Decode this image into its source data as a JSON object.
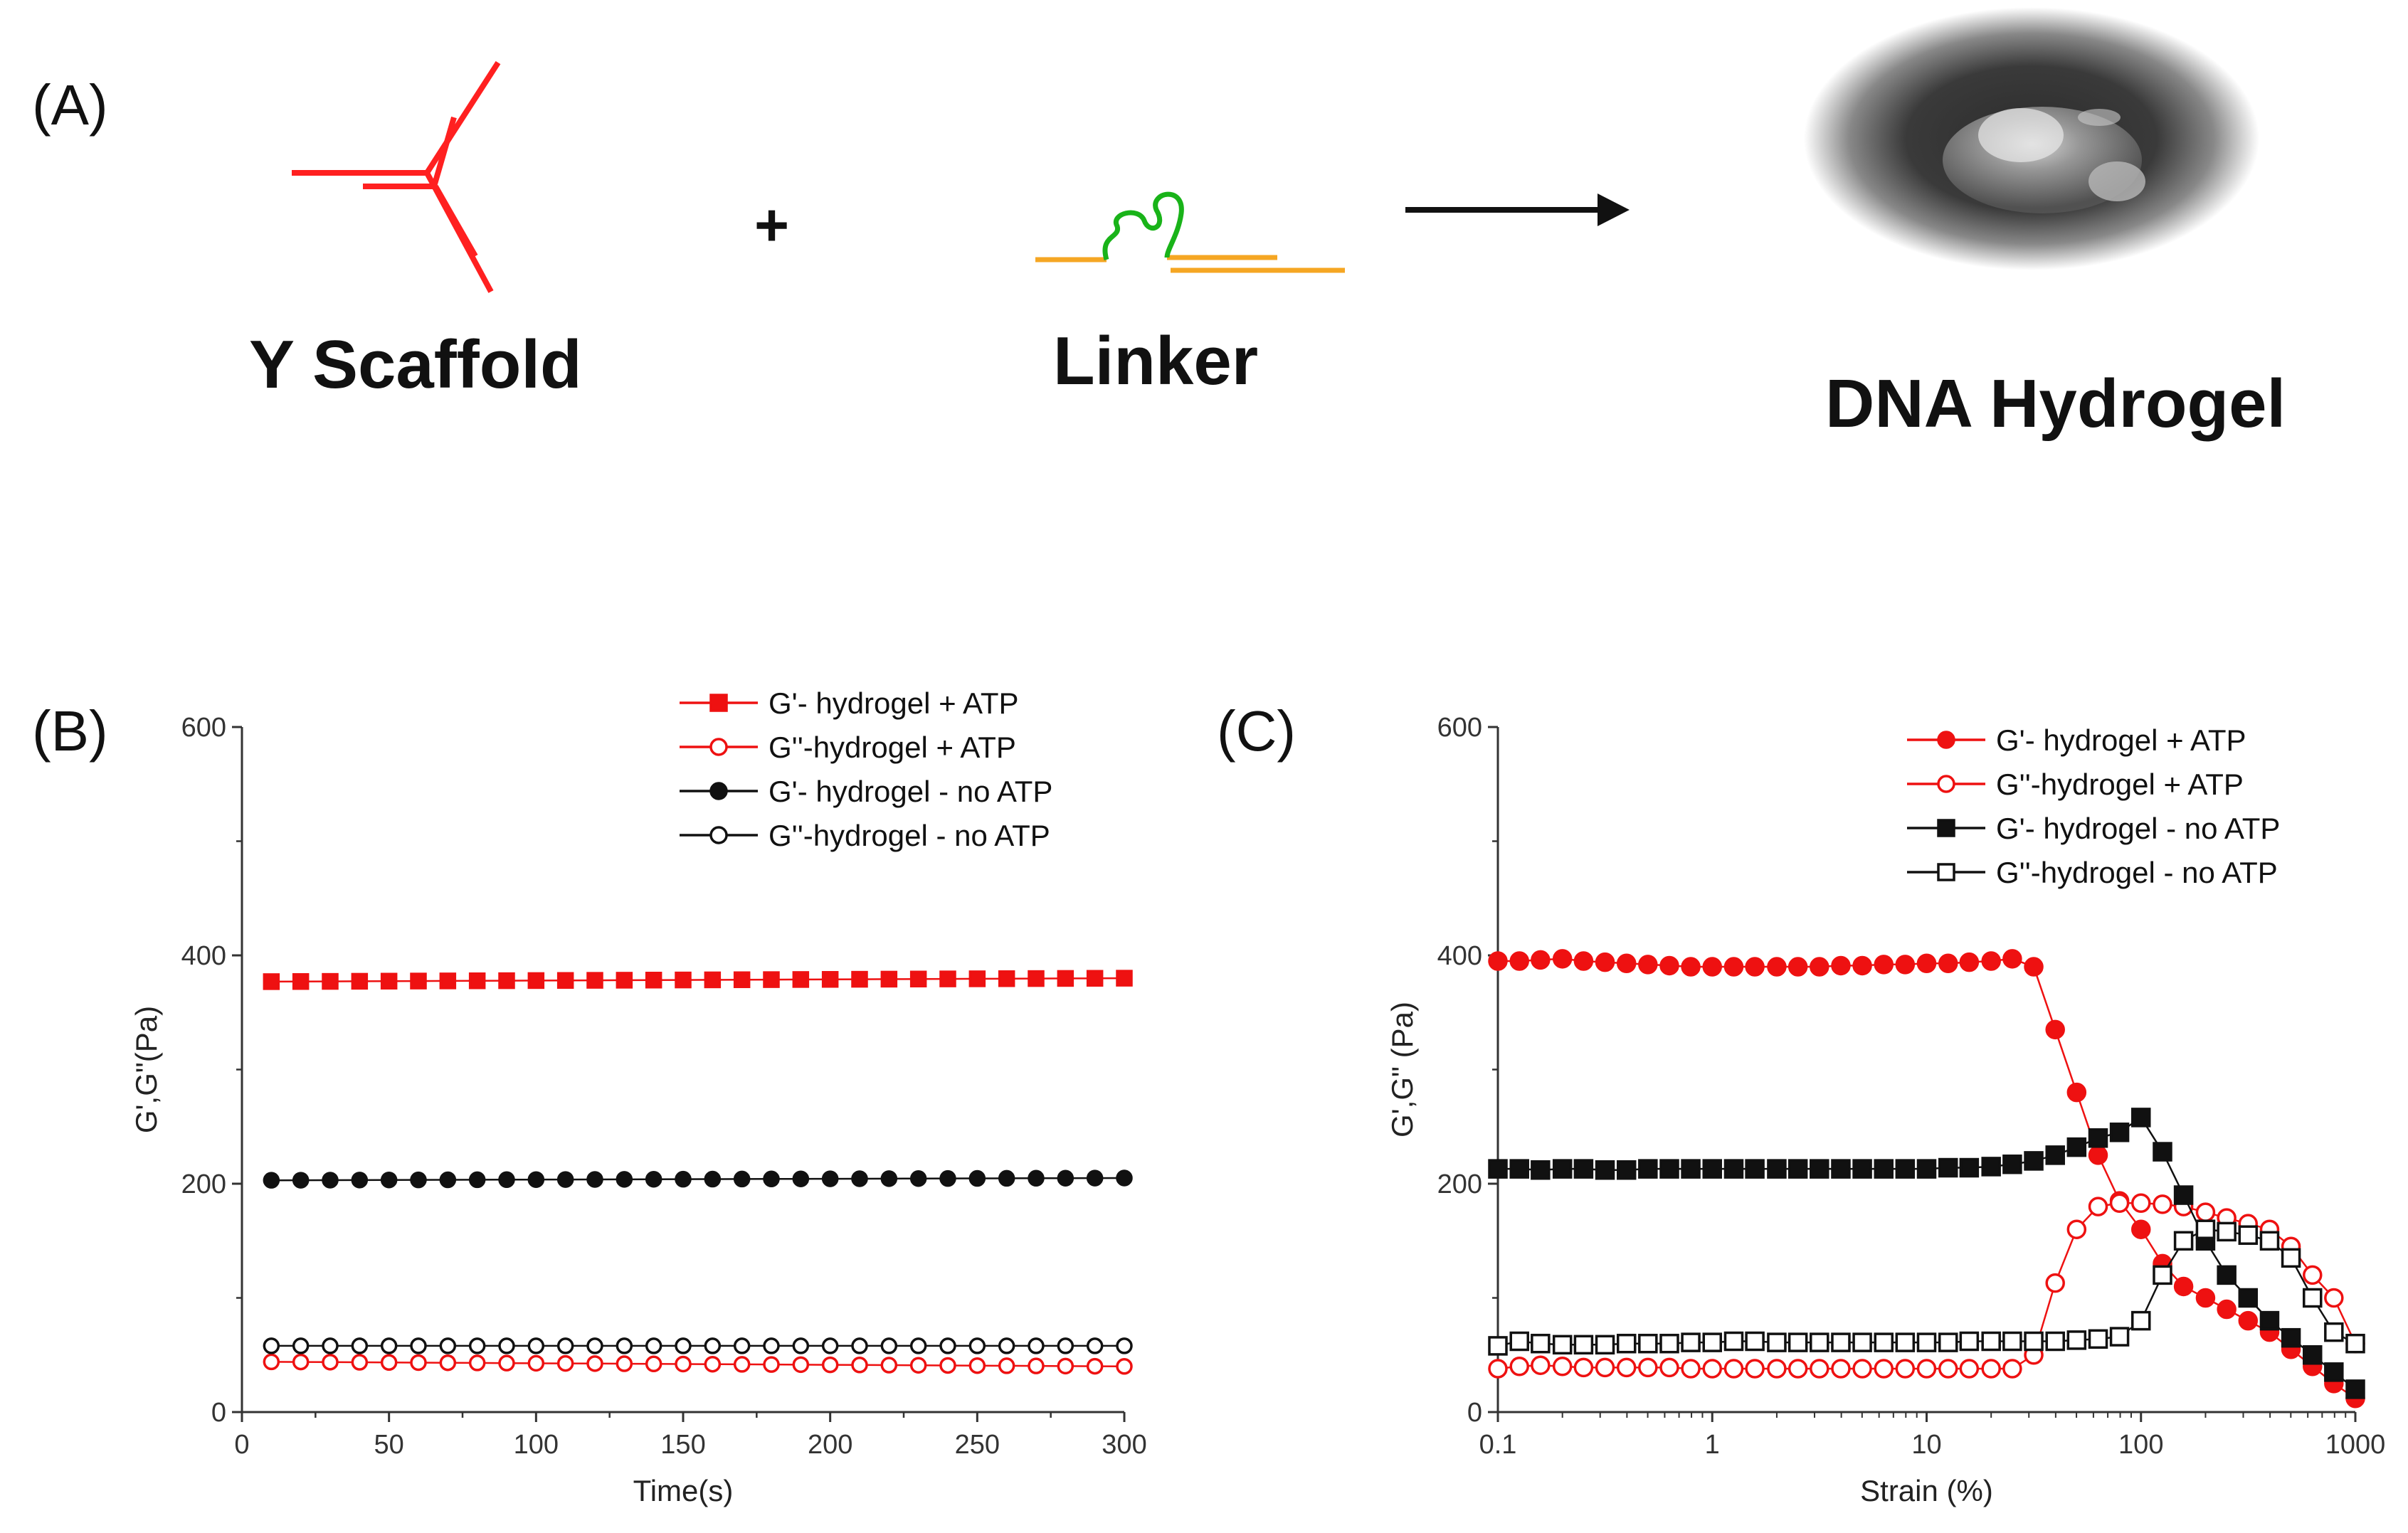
{
  "panel_a": {
    "label": "(A)",
    "scaffold_label": "Y Scaffold",
    "plus": "+",
    "linker_label": "Linker",
    "hydrogel_label": "DNA Hydrogel",
    "scaffold_color": "#ff2020",
    "linker_color": "#f5a623",
    "linker_loop_color": "#19b319"
  },
  "chart_data": [
    {
      "panel_label": "(B)",
      "type": "scatter",
      "xlabel": "Time(s)",
      "ylabel": "G',G\"(Pa)",
      "xlim": [
        0,
        300
      ],
      "ylim": [
        0,
        600
      ],
      "xticks": [
        "0",
        "50",
        "100",
        "150",
        "200",
        "250",
        "300"
      ],
      "yticks": [
        "0",
        "200",
        "400",
        "600"
      ],
      "x_scale": "linear",
      "legend_position": "top-right",
      "series": [
        {
          "name": "G'- hydrogel + ATP",
          "color": "#ee1111",
          "marker": "square",
          "filled": true,
          "x_range": [
            10,
            300
          ],
          "count": 30,
          "y_start": 377,
          "y_end": 380
        },
        {
          "name": "G''-hydrogel + ATP",
          "color": "#ee1111",
          "marker": "circle",
          "filled": false,
          "x_range": [
            10,
            300
          ],
          "count": 30,
          "y_start": 44,
          "y_end": 40
        },
        {
          "name": "G'- hydrogel - no ATP",
          "color": "#111111",
          "marker": "circle",
          "filled": true,
          "x_range": [
            10,
            300
          ],
          "count": 30,
          "y_start": 203,
          "y_end": 205
        },
        {
          "name": "G''-hydrogel - no ATP",
          "color": "#111111",
          "marker": "circle",
          "filled": false,
          "x_range": [
            10,
            300
          ],
          "count": 30,
          "y_start": 58,
          "y_end": 58
        }
      ]
    },
    {
      "panel_label": "(C)",
      "type": "line",
      "xlabel": "Strain (%)",
      "ylabel": "G',G\" (Pa)",
      "xlim": [
        0.1,
        1000
      ],
      "ylim": [
        0,
        600
      ],
      "xticks": [
        "0.1",
        "1",
        "10",
        "100",
        "1000"
      ],
      "yticks": [
        "0",
        "200",
        "400",
        "600"
      ],
      "x_scale": "log",
      "legend_position": "top-right",
      "series": [
        {
          "name": "G'- hydrogel + ATP",
          "color": "#ee1111",
          "marker": "circle",
          "filled": true,
          "x": [
            0.1,
            0.126,
            0.158,
            0.2,
            0.251,
            0.316,
            0.398,
            0.501,
            0.631,
            0.794,
            1,
            1.26,
            1.58,
            2,
            2.51,
            3.16,
            3.98,
            5.01,
            6.31,
            7.94,
            10,
            12.6,
            15.8,
            20,
            25.1,
            31.6,
            39.8,
            50.1,
            63.1,
            79.4,
            100,
            126,
            158,
            200,
            251,
            316,
            398,
            501,
            631,
            794,
            1000
          ],
          "y": [
            395,
            395,
            396,
            397,
            395,
            394,
            393,
            392,
            391,
            390,
            390,
            390,
            390,
            390,
            390,
            390,
            391,
            391,
            392,
            392,
            393,
            393,
            394,
            395,
            397,
            390,
            335,
            280,
            225,
            185,
            160,
            130,
            110,
            100,
            90,
            80,
            70,
            55,
            40,
            25,
            12
          ]
        },
        {
          "name": "G''-hydrogel +  ATP",
          "color": "#ee1111",
          "marker": "circle",
          "filled": false,
          "x": [
            0.1,
            0.126,
            0.158,
            0.2,
            0.251,
            0.316,
            0.398,
            0.501,
            0.631,
            0.794,
            1,
            1.26,
            1.58,
            2,
            2.51,
            3.16,
            3.98,
            5.01,
            6.31,
            7.94,
            10,
            12.6,
            15.8,
            20,
            25.1,
            31.6,
            39.8,
            50.1,
            63.1,
            79.4,
            100,
            126,
            158,
            200,
            251,
            316,
            398,
            501,
            631,
            794,
            1000
          ],
          "y": [
            38,
            40,
            41,
            40,
            39,
            39,
            39,
            39,
            39,
            38,
            38,
            38,
            38,
            38,
            38,
            38,
            38,
            38,
            38,
            38,
            38,
            38,
            38,
            38,
            38,
            50,
            113,
            160,
            180,
            183,
            183,
            182,
            180,
            175,
            170,
            165,
            160,
            145,
            120,
            100,
            60
          ]
        },
        {
          "name": "G'- hydrogel - no ATP",
          "color": "#111111",
          "marker": "square",
          "filled": true,
          "x": [
            0.1,
            0.126,
            0.158,
            0.2,
            0.251,
            0.316,
            0.398,
            0.501,
            0.631,
            0.794,
            1,
            1.26,
            1.58,
            2,
            2.51,
            3.16,
            3.98,
            5.01,
            6.31,
            7.94,
            10,
            12.6,
            15.8,
            20,
            25.1,
            31.6,
            39.8,
            50.1,
            63.1,
            79.4,
            100,
            126,
            158,
            200,
            251,
            316,
            398,
            501,
            631,
            794,
            1000
          ],
          "y": [
            213,
            213,
            212,
            213,
            213,
            212,
            212,
            213,
            213,
            213,
            213,
            213,
            213,
            213,
            213,
            213,
            213,
            213,
            213,
            213,
            213,
            214,
            214,
            215,
            217,
            220,
            225,
            232,
            240,
            245,
            258,
            228,
            190,
            150,
            120,
            100,
            80,
            65,
            50,
            35,
            20
          ]
        },
        {
          "name": "G''-hydrogel - no ATP",
          "color": "#111111",
          "marker": "square",
          "filled": false,
          "x": [
            0.1,
            0.126,
            0.158,
            0.2,
            0.251,
            0.316,
            0.398,
            0.501,
            0.631,
            0.794,
            1,
            1.26,
            1.58,
            2,
            2.51,
            3.16,
            3.98,
            5.01,
            6.31,
            7.94,
            10,
            12.6,
            15.8,
            20,
            25.1,
            31.6,
            39.8,
            50.1,
            63.1,
            79.4,
            100,
            126,
            158,
            200,
            251,
            316,
            398,
            501,
            631,
            794,
            1000
          ],
          "y": [
            58,
            62,
            60,
            59,
            59,
            59,
            60,
            60,
            60,
            61,
            61,
            62,
            62,
            61,
            61,
            61,
            61,
            61,
            61,
            61,
            61,
            61,
            62,
            62,
            62,
            62,
            62,
            63,
            64,
            66,
            80,
            120,
            150,
            160,
            158,
            155,
            150,
            135,
            100,
            70,
            60
          ]
        }
      ]
    }
  ]
}
